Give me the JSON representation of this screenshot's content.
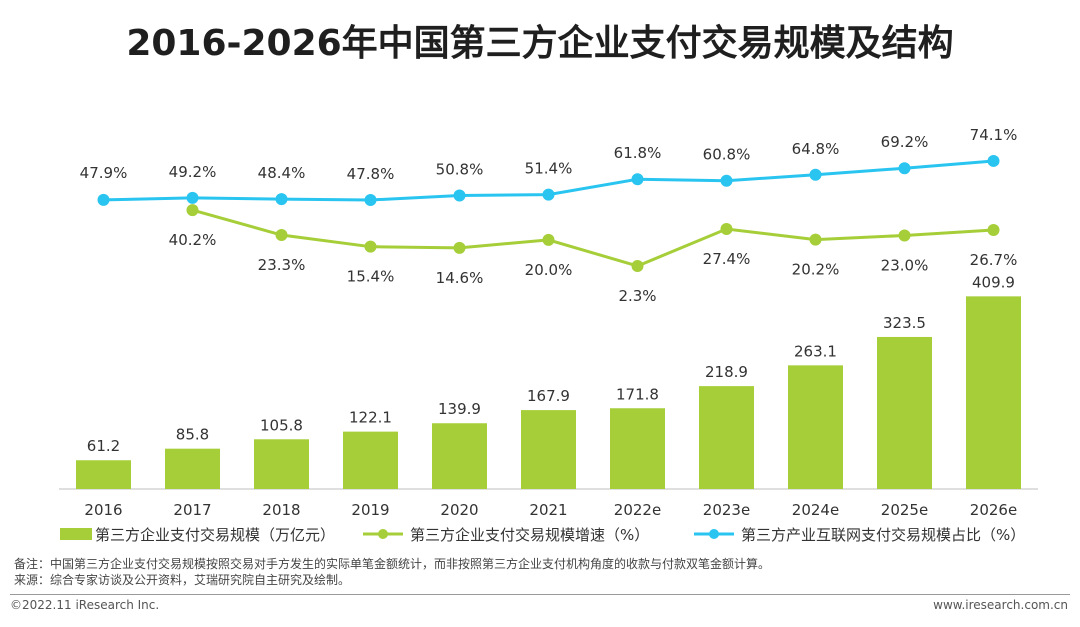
{
  "title": "2016-2026年中国第三方企业支付交易规模及结构",
  "colors": {
    "bar": "#a6ce39",
    "growth_line": "#a6ce39",
    "share_line": "#29c5f0",
    "axis": "#bfbfbf"
  },
  "chart_data": {
    "type": "bar",
    "categories": [
      "2016",
      "2017",
      "2018",
      "2019",
      "2020",
      "2021",
      "2022e",
      "2023e",
      "2024e",
      "2025e",
      "2026e"
    ],
    "series": [
      {
        "name": "第三方企业支付交易规模（万亿元）",
        "type": "bar",
        "values": [
          61.2,
          85.8,
          105.8,
          122.1,
          139.9,
          167.9,
          171.8,
          218.9,
          263.1,
          323.5,
          409.9
        ],
        "labels": [
          "61.2",
          "85.8",
          "105.8",
          "122.1",
          "139.9",
          "167.9",
          "171.8",
          "218.9",
          "263.1",
          "323.5",
          "409.9"
        ]
      },
      {
        "name": "第三方企业支付交易规模增速（%）",
        "type": "line",
        "values": [
          null,
          40.2,
          23.3,
          15.4,
          14.6,
          20.0,
          2.3,
          27.4,
          20.2,
          23.0,
          26.7
        ],
        "labels": [
          "",
          "40.2%",
          "23.3%",
          "15.4%",
          "14.6%",
          "20.0%",
          "2.3%",
          "27.4%",
          "20.2%",
          "23.0%",
          "26.7%"
        ]
      },
      {
        "name": "第三方产业互联网支付交易规模占比（%）",
        "type": "line",
        "values": [
          47.9,
          49.2,
          48.4,
          47.8,
          50.8,
          51.4,
          61.8,
          60.8,
          64.8,
          69.2,
          74.1
        ],
        "labels": [
          "47.9%",
          "49.2%",
          "48.4%",
          "47.8%",
          "50.8%",
          "51.4%",
          "61.8%",
          "60.8%",
          "64.8%",
          "69.2%",
          "74.1%"
        ]
      }
    ],
    "legend_position": "bottom",
    "grid": false
  },
  "notes": {
    "note1": "备注：中国第三方企业支付交易规模按照交易对手方发生的实际单笔金额统计，而非按照第三方企业支付机构角度的收款与付款双笔金额计算。",
    "note2": "来源：综合专家访谈及公开资料，艾瑞研究院自主研究及绘制。"
  },
  "footer": {
    "copyright": "©2022.11 iResearch Inc.",
    "website": "www.iresearch.com.cn"
  }
}
